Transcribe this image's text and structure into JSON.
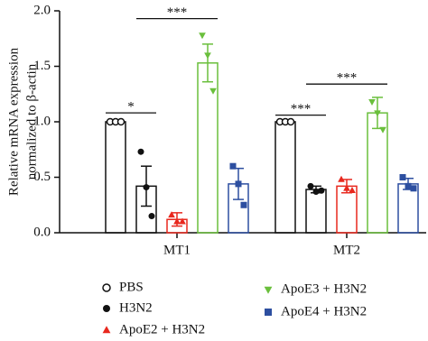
{
  "chart_data": {
    "type": "bar",
    "ylabel": [
      "Relative mRNA expression",
      "normalized to β-actin"
    ],
    "categories": [
      "MT1",
      "MT2"
    ],
    "ylim": [
      0,
      2.0
    ],
    "yticks": [
      {
        "value": 0,
        "label": "0.0"
      },
      0.5,
      {
        "value": 1,
        "label": "1.0"
      },
      1.5,
      {
        "value": 2,
        "label": "2.0"
      }
    ],
    "series": [
      {
        "name": "PBS",
        "color": "#111111",
        "marker": "circle-open",
        "values": [
          1.0,
          1.0
        ],
        "errors": [
          0,
          0
        ],
        "points": [
          [
            1.0,
            1.0,
            1.0
          ],
          [
            1.0,
            1.0,
            1.0
          ]
        ]
      },
      {
        "name": "H3N2",
        "color": "#111111",
        "marker": "circle",
        "values": [
          0.42,
          0.39
        ],
        "errors": [
          0.18,
          0.03
        ],
        "points": [
          [
            0.73,
            0.41,
            0.15
          ],
          [
            0.42,
            0.37,
            0.38
          ]
        ]
      },
      {
        "name": "ApoE2 + H3N2",
        "color": "#e8281e",
        "marker": "triangle",
        "values": [
          0.12,
          0.42
        ],
        "errors": [
          0.06,
          0.06
        ],
        "points": [
          [
            0.16,
            0.1,
            0.1
          ],
          [
            0.48,
            0.4,
            0.38
          ]
        ]
      },
      {
        "name": "ApoE3 + H3N2",
        "color": "#6abf3c",
        "marker": "triangle-down",
        "values": [
          1.53,
          1.08
        ],
        "errors": [
          0.17,
          0.14
        ],
        "points": [
          [
            1.78,
            1.6,
            1.28
          ],
          [
            1.18,
            1.08,
            0.93
          ]
        ]
      },
      {
        "name": "ApoE4 + H3N2",
        "color": "#2d4fa0",
        "marker": "square",
        "values": [
          0.44,
          0.44
        ],
        "errors": [
          0.14,
          0.05
        ],
        "points": [
          [
            0.6,
            0.44,
            0.25
          ],
          [
            0.5,
            0.42,
            0.4
          ]
        ]
      }
    ],
    "annotations": [
      {
        "text": "*",
        "category": "MT1",
        "between": [
          "PBS",
          "H3N2"
        ],
        "y": 1.08
      },
      {
        "text": "***",
        "category": "MT1",
        "between": [
          "H3N2",
          "ApoE3 + H3N2"
        ],
        "y": 1.93
      },
      {
        "text": "***",
        "category": "MT2",
        "between": [
          "PBS",
          "H3N2"
        ],
        "y": 1.06
      },
      {
        "text": "***",
        "category": "MT2",
        "between": [
          "H3N2",
          "ApoE3 + H3N2"
        ],
        "y": 1.34
      }
    ]
  }
}
